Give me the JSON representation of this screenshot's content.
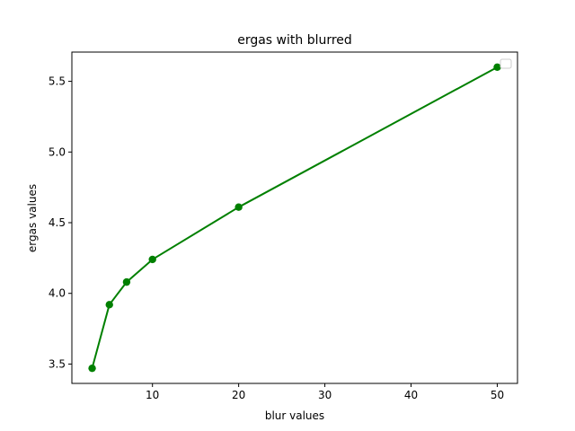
{
  "chart_data": {
    "type": "line",
    "title": "ergas with blurred",
    "xlabel": "blur values",
    "ylabel": "ergas values",
    "xlim": [
      0.65,
      52.35
    ],
    "ylim": [
      3.363,
      5.707
    ],
    "xticks": [
      10,
      20,
      30,
      40,
      50
    ],
    "xtick_labels": [
      "10",
      "20",
      "30",
      "40",
      "50"
    ],
    "yticks": [
      3.5,
      4.0,
      4.5,
      5.0,
      5.5
    ],
    "ytick_labels": [
      "3.5",
      "4.0",
      "4.5",
      "5.0",
      "5.5"
    ],
    "grid": false,
    "legend": "upper-right (empty)",
    "color": "#008000",
    "marker": "circle",
    "series": [
      {
        "x": [
          3,
          5,
          7,
          10,
          20,
          50
        ],
        "y": [
          3.47,
          3.92,
          4.08,
          4.24,
          4.61,
          5.6
        ]
      }
    ]
  }
}
